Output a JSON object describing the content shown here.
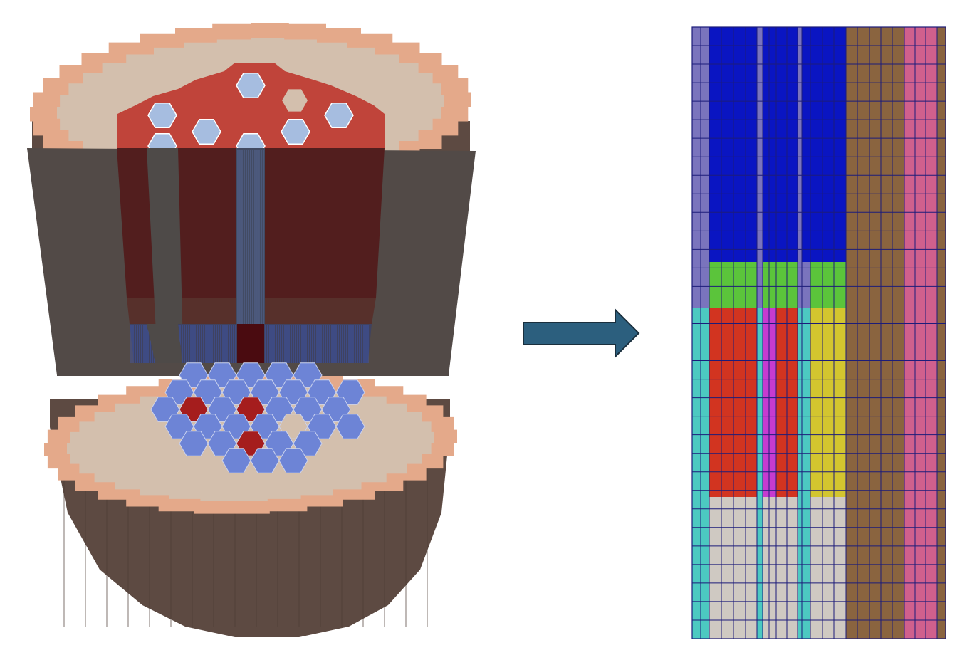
{
  "figure": {
    "left_panel": {
      "description_name": "3d-reactor-core-cutaway",
      "colors": {
        "vessel_body": "#5d4a42",
        "vessel_cut_face": "#524a47",
        "reflector_ring": "#e4a98a",
        "core_fill": "#d3bfad",
        "fuel_region": "#c0443a",
        "fuel_region_dark": "#521e1e",
        "control_rod": "#a6bde0",
        "assembly_mesh": "#3f5fcf",
        "hot_assembly": "#a51d1d"
      }
    },
    "arrow": {
      "direction": "right",
      "color": "#2c5f7e"
    },
    "right_panel": {
      "description_name": "2d-rz-mesh-slice",
      "colors": {
        "upper_column_a": "#7a74bd",
        "upper_plenum": "#0a15c2",
        "upper_axial_reflector": "#5bc43b",
        "lower_column_a": "#4cc9c1",
        "active_fuel": "#d23420",
        "fuel_gap": "#c63bd0",
        "active_fuel_b": "#d3c52f",
        "lower_plenum": "#cfc9c2",
        "radial_reflector": "#8a643f",
        "shield": "#d0608d",
        "grid_line": "#1c1c7a"
      }
    }
  }
}
